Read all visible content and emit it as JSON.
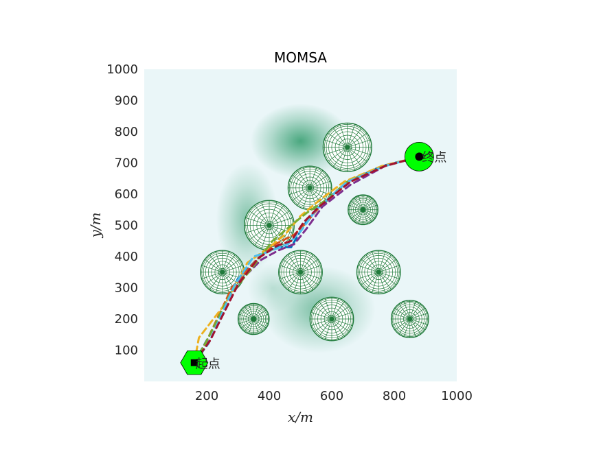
{
  "chart_data": {
    "type": "scatter",
    "title": "MOMSA",
    "xlabel": "x/m",
    "ylabel": "y/m",
    "xlim": [
      0,
      1000
    ],
    "ylim": [
      0,
      1000
    ],
    "xticks": [
      "200",
      "400",
      "600",
      "800",
      "1000"
    ],
    "yticks": [
      "100",
      "200",
      "300",
      "400",
      "500",
      "600",
      "700",
      "800",
      "900",
      "1000"
    ],
    "background_hills": [
      {
        "x": 500,
        "y": 770,
        "sx": 80,
        "sy": 60,
        "a": 0.85
      },
      {
        "x": 330,
        "y": 520,
        "sx": 50,
        "sy": 90,
        "a": 0.55
      },
      {
        "x": 560,
        "y": 230,
        "sx": 90,
        "sy": 70,
        "a": 0.6
      },
      {
        "x": 410,
        "y": 300,
        "sx": 40,
        "sy": 40,
        "a": 0.25
      }
    ],
    "obstacles": [
      {
        "x": 650,
        "y": 750,
        "r": 78
      },
      {
        "x": 530,
        "y": 620,
        "r": 70
      },
      {
        "x": 700,
        "y": 550,
        "r": 48
      },
      {
        "x": 400,
        "y": 500,
        "r": 80
      },
      {
        "x": 250,
        "y": 350,
        "r": 70
      },
      {
        "x": 500,
        "y": 350,
        "r": 70
      },
      {
        "x": 750,
        "y": 350,
        "r": 70
      },
      {
        "x": 350,
        "y": 200,
        "r": 50
      },
      {
        "x": 600,
        "y": 200,
        "r": 70
      },
      {
        "x": 850,
        "y": 200,
        "r": 60
      }
    ],
    "start": {
      "x": 160,
      "y": 60,
      "label": "起点"
    },
    "goal": {
      "x": 880,
      "y": 720,
      "label": "终点"
    },
    "paths": [
      {
        "color": "#0072BD",
        "points": [
          [
            160,
            60
          ],
          [
            210,
            150
          ],
          [
            300,
            330
          ],
          [
            370,
            400
          ],
          [
            420,
            430
          ],
          [
            470,
            430
          ],
          [
            510,
            500
          ],
          [
            560,
            560
          ],
          [
            650,
            640
          ],
          [
            760,
            690
          ],
          [
            880,
            720
          ]
        ]
      },
      {
        "color": "#D95319",
        "points": [
          [
            160,
            60
          ],
          [
            200,
            130
          ],
          [
            280,
            300
          ],
          [
            360,
            390
          ],
          [
            420,
            440
          ],
          [
            480,
            470
          ],
          [
            520,
            510
          ],
          [
            570,
            570
          ],
          [
            660,
            640
          ],
          [
            770,
            690
          ],
          [
            880,
            720
          ]
        ]
      },
      {
        "color": "#EDB120",
        "points": [
          [
            160,
            60
          ],
          [
            175,
            140
          ],
          [
            260,
            250
          ],
          [
            330,
            380
          ],
          [
            400,
            430
          ],
          [
            450,
            470
          ],
          [
            500,
            530
          ],
          [
            560,
            580
          ],
          [
            640,
            640
          ],
          [
            760,
            690
          ],
          [
            880,
            720
          ]
        ]
      },
      {
        "color": "#7E2F8E",
        "points": [
          [
            160,
            60
          ],
          [
            215,
            140
          ],
          [
            305,
            320
          ],
          [
            375,
            390
          ],
          [
            430,
            420
          ],
          [
            480,
            440
          ],
          [
            520,
            490
          ],
          [
            570,
            560
          ],
          [
            660,
            630
          ],
          [
            770,
            690
          ],
          [
            880,
            720
          ]
        ]
      },
      {
        "color": "#77AC30",
        "points": [
          [
            160,
            60
          ],
          [
            195,
            120
          ],
          [
            270,
            270
          ],
          [
            350,
            370
          ],
          [
            410,
            450
          ],
          [
            470,
            500
          ],
          [
            520,
            540
          ],
          [
            580,
            580
          ],
          [
            650,
            640
          ],
          [
            770,
            690
          ],
          [
            880,
            720
          ]
        ]
      },
      {
        "color": "#4DBEEE",
        "points": [
          [
            160,
            60
          ],
          [
            205,
            120
          ],
          [
            290,
            310
          ],
          [
            350,
            400
          ],
          [
            410,
            420
          ],
          [
            460,
            440
          ],
          [
            500,
            480
          ],
          [
            550,
            550
          ],
          [
            650,
            640
          ],
          [
            770,
            690
          ],
          [
            880,
            720
          ]
        ]
      },
      {
        "color": "#A2142F",
        "points": [
          [
            160,
            60
          ],
          [
            210,
            130
          ],
          [
            300,
            310
          ],
          [
            365,
            395
          ],
          [
            425,
            435
          ],
          [
            470,
            450
          ],
          [
            510,
            510
          ],
          [
            560,
            560
          ],
          [
            660,
            640
          ],
          [
            770,
            690
          ],
          [
            880,
            720
          ]
        ]
      }
    ],
    "colors": {
      "terrain_base": "#eaf6f8",
      "hill": "#2e9a6a",
      "obstacle_mesh": "#1f7a3a",
      "marker_fill": "#00ff00",
      "marker_center": "#000000"
    },
    "grid": false
  }
}
